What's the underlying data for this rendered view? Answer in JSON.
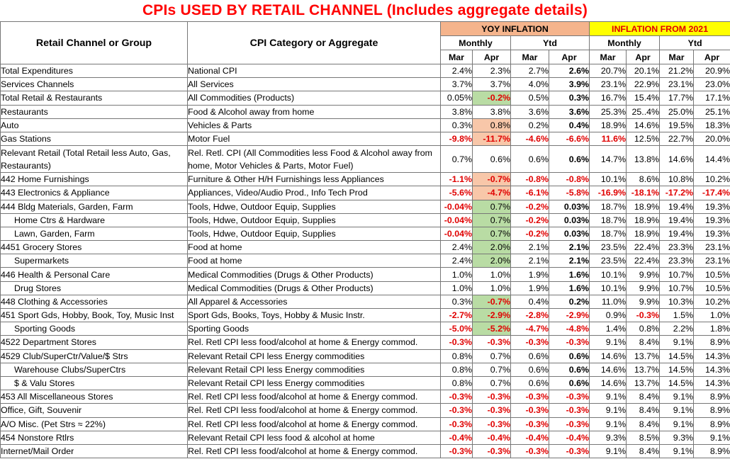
{
  "title": "CPIs USED BY RETAIL CHANNEL (Includes aggregate details)",
  "header": {
    "channel": "Retail Channel or Group",
    "category": "CPI Category or Aggregate",
    "yoy": "YOY INFLATION",
    "since": "INFLATION FROM 2021",
    "monthly": "Monthly",
    "ytd": "Ytd",
    "mar": "Mar",
    "apr": "Apr"
  },
  "colors": {
    "title": "#ff0000",
    "negative": "#e00000",
    "yoy_header_bg": "#f5b48c",
    "since_header_bg": "#ffff00",
    "green_highlight": "#b9dca4",
    "orange_highlight": "#f8c7a9"
  },
  "rows": [
    {
      "ch": "Total Expenditures",
      "cat": "National CPI",
      "v": [
        "2.4%",
        "2.3%",
        "2.7%",
        "2.6%",
        "20.7%",
        "20.1%",
        "21.2%",
        "20.9%"
      ]
    },
    {
      "ch": "Services Channels",
      "cat": "All Services",
      "v": [
        "3.7%",
        "3.7%",
        "4.0%",
        "3.9%",
        "23.1%",
        "22.9%",
        "23.1%",
        "23.0%"
      ]
    },
    {
      "ch": "Total Retail & Restaurants",
      "cat": "All Commodities (Products)",
      "v": [
        "0.05%",
        "-0.2%",
        "0.5%",
        "0.3%",
        "16.7%",
        "15.4%",
        "17.7%",
        "17.1%"
      ],
      "hl": "g"
    },
    {
      "ch": "Restaurants",
      "cat": "Food & Alcohol away from home",
      "v": [
        "3.8%",
        "3.8%",
        "3.6%",
        "3.6%",
        "25.3%",
        "25..4%",
        "25.0%",
        "25.1%"
      ]
    },
    {
      "ch": "Auto",
      "cat": "Vehicles & Parts",
      "v": [
        "0.3%",
        "0.8%",
        "0.2%",
        "0.4%",
        "18.9%",
        "14.6%",
        "19.5%",
        "18.3%"
      ],
      "hl": "o"
    },
    {
      "ch": "Gas Stations",
      "cat": "Motor Fuel",
      "v": [
        "-9.8%",
        "-11.7%",
        "-4.6%",
        "-6.6%",
        "11.6%",
        "12.5%",
        "22.7%",
        "20.0%"
      ],
      "hl": "o",
      "red5": true
    },
    {
      "ch": "Relevant Retail (Total Retail less Auto, Gas, Restaurants)",
      "cat": "Rel. Retl. CPI (All Commodities less Food & Alcohol away from home, Motor Vehicles & Parts, Motor Fuel)",
      "v": [
        "0.7%",
        "0.6%",
        "0.6%",
        "0.6%",
        "14.7%",
        "13.8%",
        "14.6%",
        "14.4%"
      ],
      "tall": true
    },
    {
      "ch": "442 Home Furnishings",
      "cat": "Furniture  & Other H/H Furnishings less Appliances",
      "v": [
        "-1.1%",
        "-0.7%",
        "-0.8%",
        "-0.8%",
        "10.1%",
        "8.6%",
        "10.8%",
        "10.2%"
      ],
      "hl": "o"
    },
    {
      "ch": "443 Electronics & Appliance",
      "cat": "Appliances, Video/Audio Prod., Info Tech Prod",
      "v": [
        "-5.6%",
        "-4.7%",
        "-6.1%",
        "-5.8%",
        "-16.9%",
        "-18.1%",
        "-17.2%",
        "-17.4%"
      ],
      "hl": "o"
    },
    {
      "ch": "444 Bldg Materials, Garden, Farm",
      "cat": "Tools, Hdwe, Outdoor Equip, Supplies",
      "v": [
        "-0.04%",
        "0.7%",
        "-0.2%",
        "0.03%",
        "18.7%",
        "18.9%",
        "19.4%",
        "19.3%"
      ],
      "hl": "g"
    },
    {
      "ch": "Home Ctrs & Hardware",
      "cat": "Tools, Hdwe, Outdoor Equip, Supplies",
      "v": [
        "-0.04%",
        "0.7%",
        "-0.2%",
        "0.03%",
        "18.7%",
        "18.9%",
        "19.4%",
        "19.3%"
      ],
      "hl": "g",
      "ind": true
    },
    {
      "ch": "Lawn, Garden, Farm",
      "cat": "Tools, Hdwe, Outdoor Equip, Supplies",
      "v": [
        "-0.04%",
        "0.7%",
        "-0.2%",
        "0.03%",
        "18.7%",
        "18.9%",
        "19.4%",
        "19.3%"
      ],
      "hl": "g",
      "ind": true
    },
    {
      "ch": "4451 Grocery Stores",
      "cat": "Food at home",
      "v": [
        "2.4%",
        "2.0%",
        "2.1%",
        "2.1%",
        "23.5%",
        "22.4%",
        "23.3%",
        "23.1%"
      ],
      "hl": "g"
    },
    {
      "ch": "Supermarkets",
      "cat": "Food at home",
      "v": [
        "2.4%",
        "2.0%",
        "2.1%",
        "2.1%",
        "23.5%",
        "22.4%",
        "23.3%",
        "23.1%"
      ],
      "hl": "g",
      "ind": true
    },
    {
      "ch": "446 Health & Personal Care",
      "cat": "Medical Commodities (Drugs & Other Products)",
      "v": [
        "1.0%",
        "1.0%",
        "1.9%",
        "1.6%",
        "10.1%",
        "9.9%",
        "10.7%",
        "10.5%"
      ]
    },
    {
      "ch": "Drug Stores",
      "cat": "Medical Commodities (Drugs & Other Products)",
      "v": [
        "1.0%",
        "1.0%",
        "1.9%",
        "1.6%",
        "10.1%",
        "9.9%",
        "10.7%",
        "10.5%"
      ],
      "ind": true
    },
    {
      "ch": "448 Clothing & Accessories",
      "cat": "All Apparel & Accessories",
      "v": [
        "0.3%",
        "-0.7%",
        "0.4%",
        "0.2%",
        "11.0%",
        "9.9%",
        "10.3%",
        "10.2%"
      ],
      "hl": "g"
    },
    {
      "ch": "451 Sport Gds, Hobby, Book, Toy, Music Inst",
      "cat": "Sport Gds, Books, Toys, Hobby & Music Instr.",
      "v": [
        "-2.7%",
        "-2.9%",
        "-2.8%",
        "-2.9%",
        "0.9%",
        "-0.3%",
        "1.5%",
        "1.0%"
      ],
      "hl": "g"
    },
    {
      "ch": "Sporting Goods",
      "cat": "Sporting Goods",
      "v": [
        "-5.0%",
        "-5.2%",
        "-4.7%",
        "-4.8%",
        "1.4%",
        "0.8%",
        "2.2%",
        "1.8%"
      ],
      "hl": "g",
      "ind": true
    },
    {
      "ch": "4522 Department Stores",
      "cat": "Rel. Retl CPI less food/alcohol at home & Energy commod.",
      "v": [
        "-0.3%",
        "-0.3%",
        "-0.3%",
        "-0.3%",
        "9.1%",
        "8.4%",
        "9.1%",
        "8.9%"
      ]
    },
    {
      "ch": "4529 Club/SuperCtr/Value/$ Strs",
      "cat": "Relevant Retail CPI less Energy commodities",
      "v": [
        "0.8%",
        "0.7%",
        "0.6%",
        "0.6%",
        "14.6%",
        "13.7%",
        "14.5%",
        "14.3%"
      ]
    },
    {
      "ch": "Warehouse Clubs/SuperCtrs",
      "cat": "Relevant Retail CPI less Energy commodities",
      "v": [
        "0.8%",
        "0.7%",
        "0.6%",
        "0.6%",
        "14.6%",
        "13.7%",
        "14.5%",
        "14.3%"
      ],
      "ind": true
    },
    {
      "ch": "$ & Valu Stores",
      "cat": "Relevant Retail CPI less Energy commodities",
      "v": [
        "0.8%",
        "0.7%",
        "0.6%",
        "0.6%",
        "14.6%",
        "13.7%",
        "14.5%",
        "14.3%"
      ],
      "ind": true
    },
    {
      "ch": "453 All Miscellaneous Stores",
      "cat": "Rel. Retl CPI less food/alcohol at home & Energy commod.",
      "v": [
        "-0.3%",
        "-0.3%",
        "-0.3%",
        "-0.3%",
        "9.1%",
        "8.4%",
        "9.1%",
        "8.9%"
      ]
    },
    {
      "ch": "Office, Gift, Souvenir",
      "cat": "Rel. Retl CPI less food/alcohol at home & Energy commod.",
      "v": [
        "-0.3%",
        "-0.3%",
        "-0.3%",
        "-0.3%",
        "9.1%",
        "8.4%",
        "9.1%",
        "8.9%"
      ]
    },
    {
      "ch": "A/O Misc. (Pet Strs ≈ 22%)",
      "cat": "Rel. Retl CPI less food/alcohol at home & Energy commod.",
      "v": [
        "-0.3%",
        "-0.3%",
        "-0.3%",
        "-0.3%",
        "9.1%",
        "8.4%",
        "9.1%",
        "8.9%"
      ]
    },
    {
      "ch": "454 Nonstore Rtlrs",
      "cat": "Relevant Retail CPI less food & alcohol at home",
      "v": [
        "-0.4%",
        "-0.4%",
        "-0.4%",
        "-0.4%",
        "9.3%",
        "8.5%",
        "9.3%",
        "9.1%"
      ]
    },
    {
      "ch": "Internet/Mail Order",
      "cat": "Rel. Retl CPI less food/alcohol at home & Energy commod.",
      "v": [
        "-0.3%",
        "-0.3%",
        "-0.3%",
        "-0.3%",
        "9.1%",
        "8.4%",
        "9.1%",
        "8.9%"
      ]
    }
  ]
}
